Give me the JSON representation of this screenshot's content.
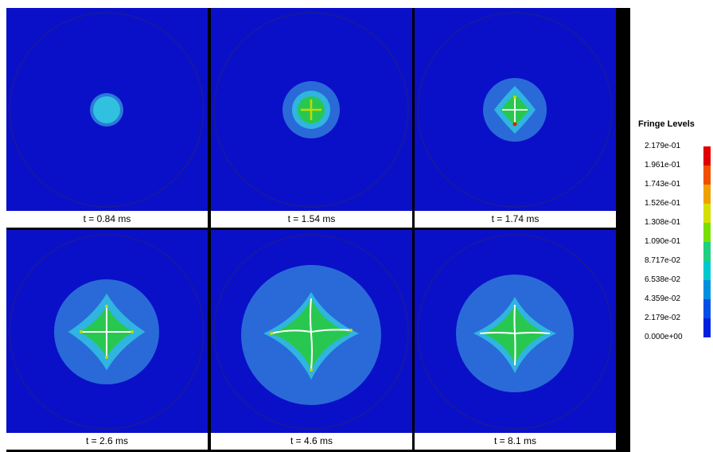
{
  "panels": [
    {
      "caption": "t = 0.84 ms"
    },
    {
      "caption": "t = 1.54 ms"
    },
    {
      "caption": "t = 1.74 ms"
    },
    {
      "caption": "t = 2.6 ms"
    },
    {
      "caption": "t = 4.6 ms"
    },
    {
      "caption": "t = 8.1 ms"
    }
  ],
  "legend": {
    "title": "Fringe Levels",
    "levels": [
      "2.179e-01",
      "1.961e-01",
      "1.743e-01",
      "1.526e-01",
      "1.308e-01",
      "1.090e-01",
      "8.717e-02",
      "6.538e-02",
      "4.359e-02",
      "2.179e-02",
      "0.000e+00"
    ],
    "colors": [
      "#e00000",
      "#f05000",
      "#f0a000",
      "#d4e000",
      "#78e000",
      "#20d080",
      "#00c8d0",
      "#0090e0",
      "#0050e8",
      "#0020e0"
    ]
  },
  "colors": {
    "background": "#0a10c8",
    "ring": "#1a1a9a",
    "halo": "#2a6ad8",
    "inner": "#30b4e0",
    "green": "#28c850",
    "crack": "#ffffff"
  }
}
